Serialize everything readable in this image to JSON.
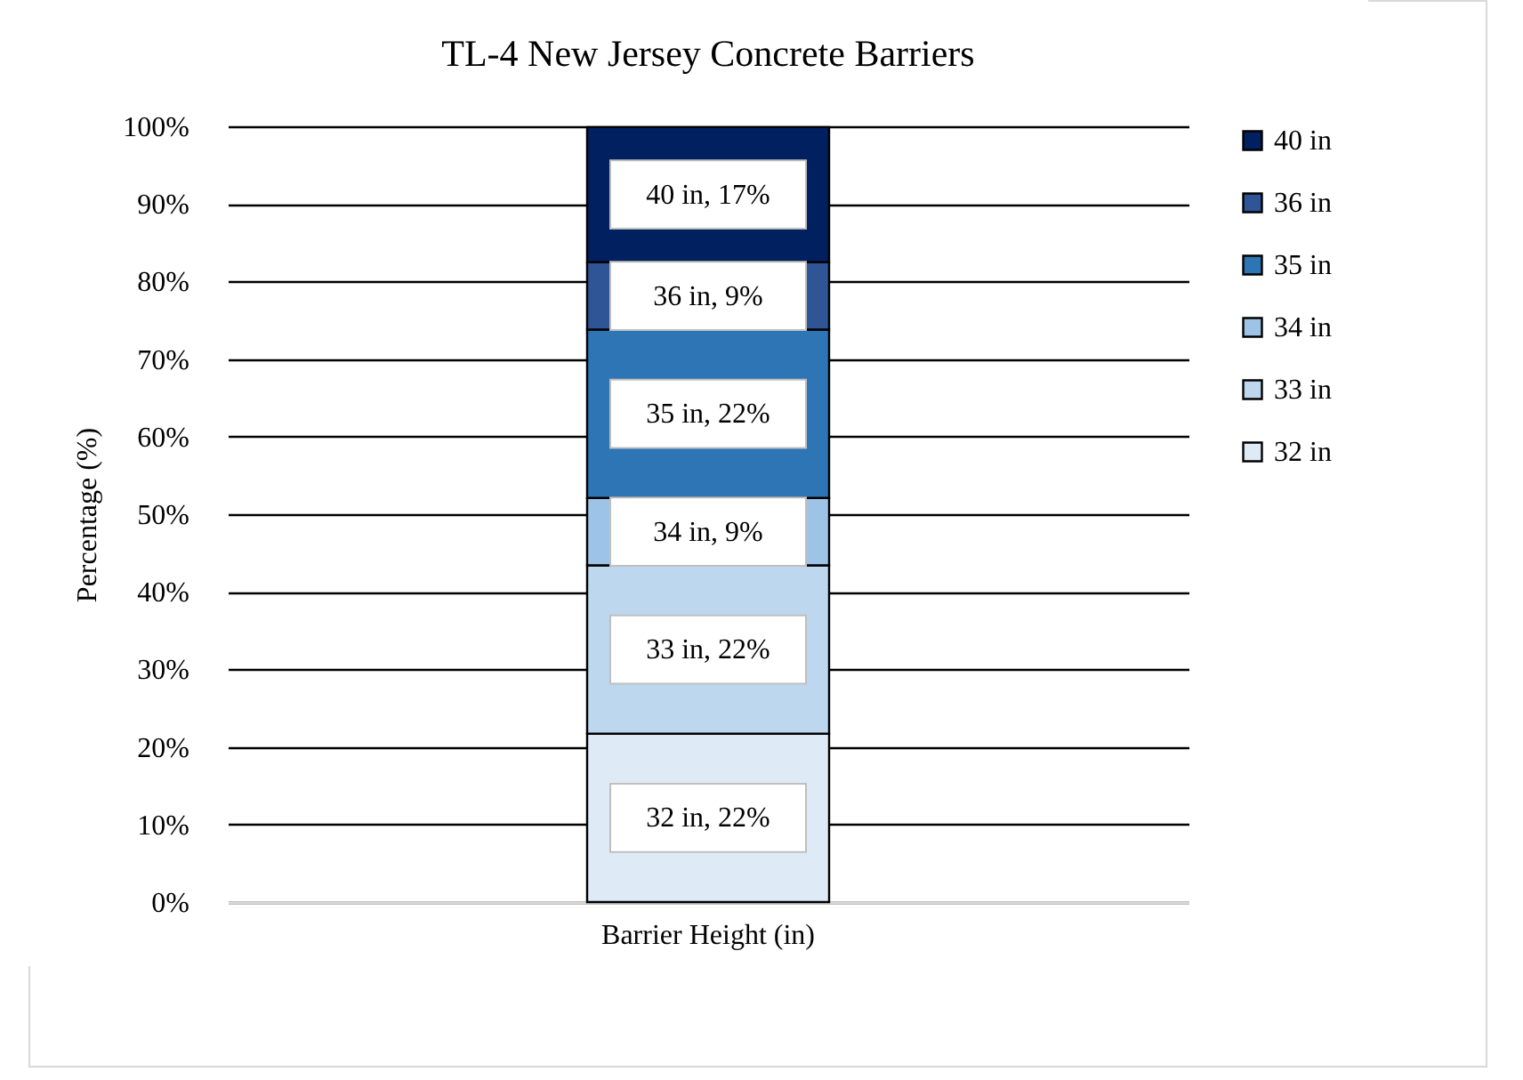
{
  "chart_data": {
    "type": "bar",
    "title": "TL-4 New Jersey  Concrete Barriers",
    "ylabel": "Percentage (%)",
    "categories": [
      "Barrier Height (in)"
    ],
    "stacked": true,
    "ylim": [
      0,
      100
    ],
    "yticks": [
      {
        "value": 0,
        "label": "0%"
      },
      {
        "value": 10,
        "label": "10%"
      },
      {
        "value": 20,
        "label": "20%"
      },
      {
        "value": 30,
        "label": "30%"
      },
      {
        "value": 40,
        "label": "40%"
      },
      {
        "value": 50,
        "label": "50%"
      },
      {
        "value": 60,
        "label": "60%"
      },
      {
        "value": 70,
        "label": "70%"
      },
      {
        "value": 80,
        "label": "80%"
      },
      {
        "value": 90,
        "label": "90%"
      },
      {
        "value": 100,
        "label": "100%"
      }
    ],
    "grid": "y",
    "legend": "right",
    "series": [
      {
        "name": "32 in",
        "color": "#deebf7",
        "values": [
          21.7
        ],
        "value_labels": [
          "32 in, 22%"
        ]
      },
      {
        "name": "33 in",
        "color": "#bdd7ee",
        "values": [
          21.7
        ],
        "value_labels": [
          "33 in, 22%"
        ]
      },
      {
        "name": "34 in",
        "color": "#9dc3e6",
        "values": [
          8.7
        ],
        "value_labels": [
          "34 in, 9%"
        ]
      },
      {
        "name": "35 in",
        "color": "#2e75b6",
        "values": [
          21.7
        ],
        "value_labels": [
          "35 in, 22%"
        ]
      },
      {
        "name": "36 in",
        "color": "#2f5597",
        "values": [
          8.7
        ],
        "value_labels": [
          "36 in, 9%"
        ]
      },
      {
        "name": "40 in",
        "color": "#002060",
        "values": [
          17.4
        ],
        "value_labels": [
          "40 in, 17%"
        ]
      }
    ]
  }
}
